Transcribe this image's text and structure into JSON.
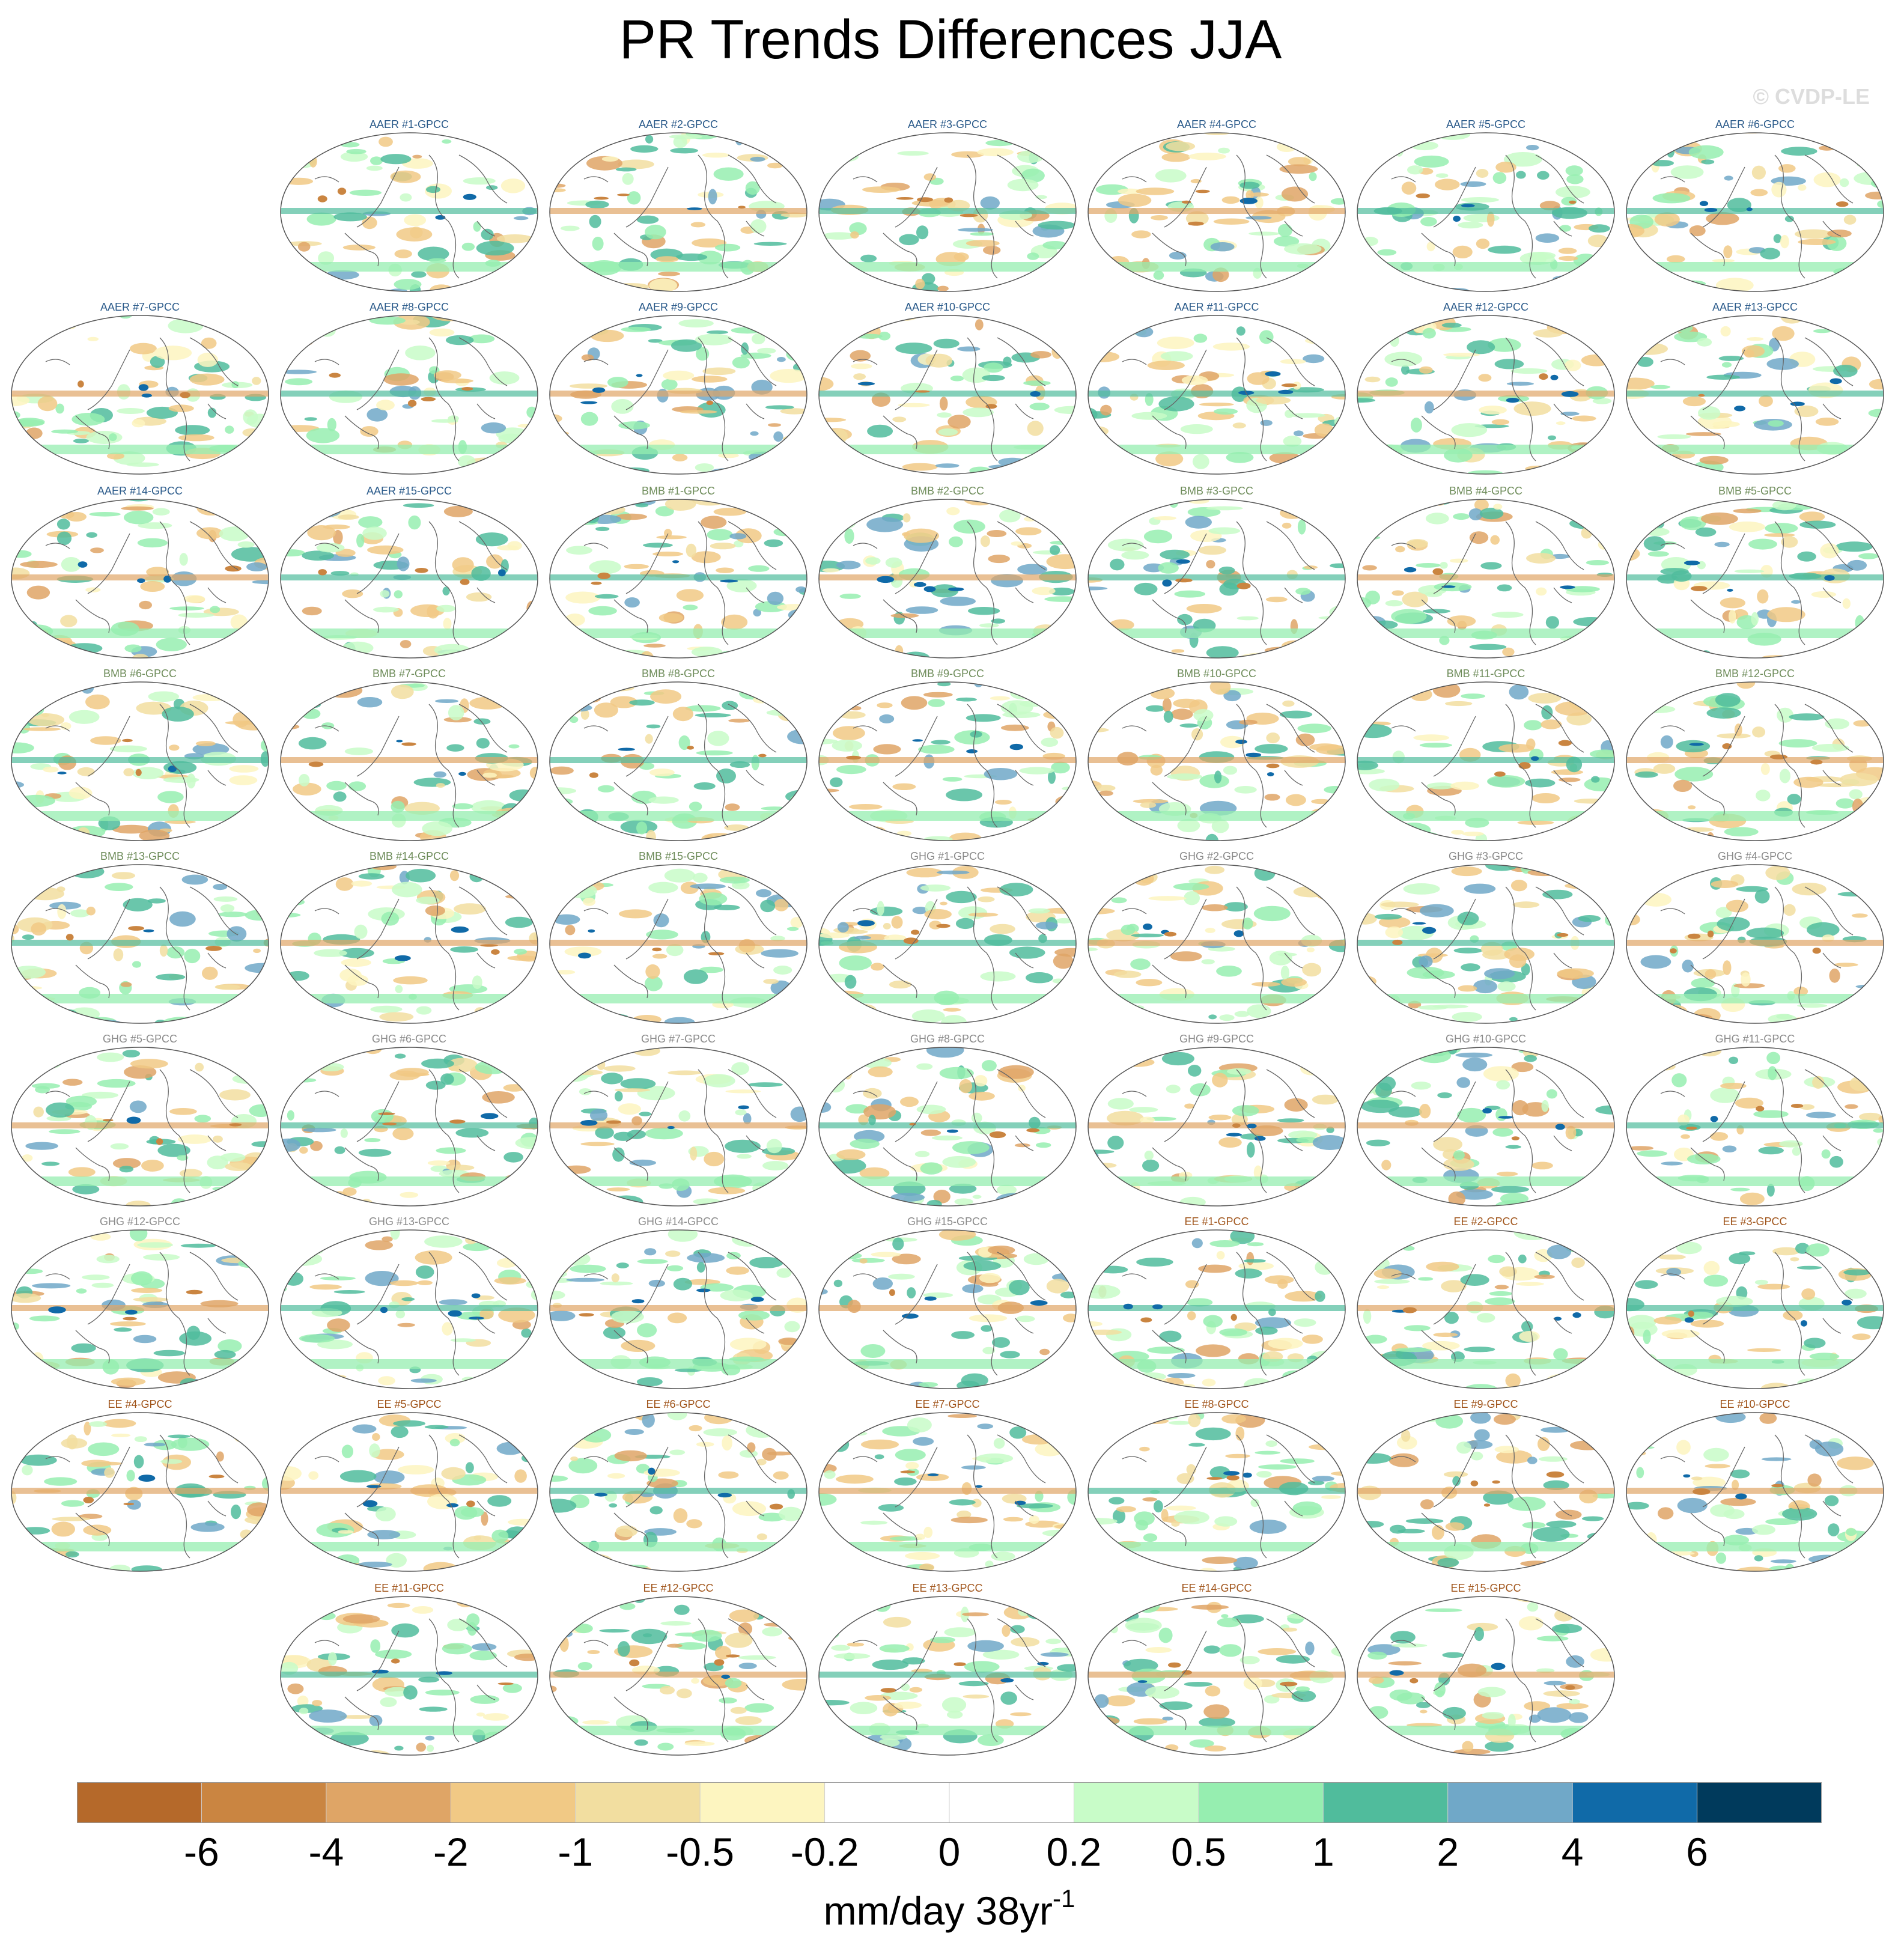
{
  "title": "PR Trends Differences JJA",
  "watermark": "© CVDP-LE",
  "chart_data": {
    "type": "heatmap",
    "title": "PR Trends Differences JJA",
    "projection": "Robinson global map",
    "panel_grid": {
      "columns": 7,
      "rows": 9
    },
    "group_colors": {
      "AAER": "#2a5a8a",
      "BMB": "#6e8c5a",
      "GHG": "#8a8a8a",
      "EE": "#a0541a"
    },
    "panels": [
      {
        "label": "AAER #1-GPCC",
        "group": "AAER"
      },
      {
        "label": "AAER #2-GPCC",
        "group": "AAER"
      },
      {
        "label": "AAER #3-GPCC",
        "group": "AAER"
      },
      {
        "label": "AAER #4-GPCC",
        "group": "AAER"
      },
      {
        "label": "AAER #5-GPCC",
        "group": "AAER"
      },
      {
        "label": "AAER #6-GPCC",
        "group": "AAER"
      },
      {
        "label": "AAER #7-GPCC",
        "group": "AAER"
      },
      {
        "label": "AAER #8-GPCC",
        "group": "AAER"
      },
      {
        "label": "AAER #9-GPCC",
        "group": "AAER"
      },
      {
        "label": "AAER #10-GPCC",
        "group": "AAER"
      },
      {
        "label": "AAER #11-GPCC",
        "group": "AAER"
      },
      {
        "label": "AAER #12-GPCC",
        "group": "AAER"
      },
      {
        "label": "AAER #13-GPCC",
        "group": "AAER"
      },
      {
        "label": "AAER #14-GPCC",
        "group": "AAER"
      },
      {
        "label": "AAER #15-GPCC",
        "group": "AAER"
      },
      {
        "label": "BMB #1-GPCC",
        "group": "BMB"
      },
      {
        "label": "BMB #2-GPCC",
        "group": "BMB"
      },
      {
        "label": "BMB #3-GPCC",
        "group": "BMB"
      },
      {
        "label": "BMB #4-GPCC",
        "group": "BMB"
      },
      {
        "label": "BMB #5-GPCC",
        "group": "BMB"
      },
      {
        "label": "BMB #6-GPCC",
        "group": "BMB"
      },
      {
        "label": "BMB #7-GPCC",
        "group": "BMB"
      },
      {
        "label": "BMB #8-GPCC",
        "group": "BMB"
      },
      {
        "label": "BMB #9-GPCC",
        "group": "BMB"
      },
      {
        "label": "BMB #10-GPCC",
        "group": "BMB"
      },
      {
        "label": "BMB #11-GPCC",
        "group": "BMB"
      },
      {
        "label": "BMB #12-GPCC",
        "group": "BMB"
      },
      {
        "label": "BMB #13-GPCC",
        "group": "BMB"
      },
      {
        "label": "BMB #14-GPCC",
        "group": "BMB"
      },
      {
        "label": "BMB #15-GPCC",
        "group": "BMB"
      },
      {
        "label": "GHG #1-GPCC",
        "group": "GHG"
      },
      {
        "label": "GHG #2-GPCC",
        "group": "GHG"
      },
      {
        "label": "GHG #3-GPCC",
        "group": "GHG"
      },
      {
        "label": "GHG #4-GPCC",
        "group": "GHG"
      },
      {
        "label": "GHG #5-GPCC",
        "group": "GHG"
      },
      {
        "label": "GHG #6-GPCC",
        "group": "GHG"
      },
      {
        "label": "GHG #7-GPCC",
        "group": "GHG"
      },
      {
        "label": "GHG #8-GPCC",
        "group": "GHG"
      },
      {
        "label": "GHG #9-GPCC",
        "group": "GHG"
      },
      {
        "label": "GHG #10-GPCC",
        "group": "GHG"
      },
      {
        "label": "GHG #11-GPCC",
        "group": "GHG"
      },
      {
        "label": "GHG #12-GPCC",
        "group": "GHG"
      },
      {
        "label": "GHG #13-GPCC",
        "group": "GHG"
      },
      {
        "label": "GHG #14-GPCC",
        "group": "GHG"
      },
      {
        "label": "GHG #15-GPCC",
        "group": "GHG"
      },
      {
        "label": "EE #1-GPCC",
        "group": "EE"
      },
      {
        "label": "EE #2-GPCC",
        "group": "EE"
      },
      {
        "label": "EE #3-GPCC",
        "group": "EE"
      },
      {
        "label": "EE #4-GPCC",
        "group": "EE"
      },
      {
        "label": "EE #5-GPCC",
        "group": "EE"
      },
      {
        "label": "EE #6-GPCC",
        "group": "EE"
      },
      {
        "label": "EE #7-GPCC",
        "group": "EE"
      },
      {
        "label": "EE #8-GPCC",
        "group": "EE"
      },
      {
        "label": "EE #9-GPCC",
        "group": "EE"
      },
      {
        "label": "EE #10-GPCC",
        "group": "EE"
      },
      {
        "label": "EE #11-GPCC",
        "group": "EE"
      },
      {
        "label": "EE #12-GPCC",
        "group": "EE"
      },
      {
        "label": "EE #13-GPCC",
        "group": "EE"
      },
      {
        "label": "EE #14-GPCC",
        "group": "EE"
      },
      {
        "label": "EE #15-GPCC",
        "group": "EE"
      }
    ],
    "colorbar": {
      "colors": [
        "#b5692a",
        "#ca8541",
        "#dfa566",
        "#f1c985",
        "#f2dea0",
        "#fdf5c0",
        "#ffffff",
        "#ffffff",
        "#c8fcc8",
        "#96eeb0",
        "#50bc9c",
        "#70a8c8",
        "#106aa8",
        "#003a5c"
      ],
      "tick_labels": [
        "-6",
        "-4",
        "-2",
        "-1",
        "-0.5",
        "-0.2",
        "0",
        "0.2",
        "0.5",
        "1",
        "2",
        "4",
        "6"
      ],
      "label": "mm/day 38yr",
      "label_superscript": "-1"
    }
  }
}
